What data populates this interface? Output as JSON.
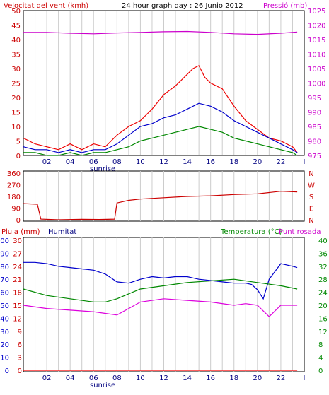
{
  "chart_data": [
    {
      "id": "wind-pressure",
      "type": "line",
      "title": "24 hour graph day : 26 Junio 2012",
      "left_axis_label": "Velocitat del vent (kmh)",
      "right_axis_label": "Pressió (mb)",
      "left_ticks": [
        "0",
        "5",
        "10",
        "15",
        "20",
        "25",
        "30",
        "35",
        "40",
        "45",
        "50"
      ],
      "right_ticks": [
        "975",
        "980",
        "985",
        "990",
        "995",
        "1000",
        "1005",
        "1010",
        "1015",
        "1020",
        "1025"
      ],
      "ylim_left": [
        0,
        50
      ],
      "ylim_right": [
        975,
        1025
      ],
      "x_ticks": [
        "02",
        "04",
        "06",
        "08",
        "10",
        "12",
        "14",
        "16",
        "18",
        "20",
        "22",
        "I"
      ],
      "sunrise_label": "sunrise",
      "grid": true,
      "series": [
        {
          "axis": "right",
          "color": "#cc00cc",
          "x": [
            0,
            2,
            4,
            6,
            8,
            10,
            12,
            14,
            16,
            18,
            20,
            22,
            23.4
          ],
          "values": [
            1017.5,
            1017.5,
            1017.2,
            1017.0,
            1017.3,
            1017.5,
            1017.7,
            1017.8,
            1017.5,
            1017.0,
            1016.8,
            1017.2,
            1017.6
          ]
        },
        {
          "axis": "left",
          "color": "#ee0000",
          "x": [
            0,
            1,
            2,
            3,
            4,
            5,
            6,
            7,
            8,
            9,
            10,
            11,
            12,
            13,
            14,
            14.5,
            15,
            15.5,
            16,
            17,
            18,
            19,
            20,
            21,
            22,
            23,
            23.4
          ],
          "values": [
            6,
            4,
            3,
            2,
            4,
            2,
            4,
            3,
            7,
            10,
            12,
            16,
            21,
            24,
            28,
            30,
            31,
            27,
            25,
            23,
            17,
            12,
            9,
            6,
            5,
            3,
            1
          ]
        },
        {
          "axis": "left",
          "color": "#0000cc",
          "x": [
            0,
            1,
            2,
            3,
            4,
            5,
            6,
            7,
            8,
            9,
            10,
            11,
            12,
            13,
            14,
            15,
            16,
            17,
            18,
            19,
            20,
            21,
            22,
            23,
            23.4
          ],
          "values": [
            3,
            2,
            2,
            1,
            2,
            1,
            2,
            2,
            4,
            7,
            10,
            11,
            13,
            14,
            16,
            18,
            17,
            15,
            12,
            10,
            8,
            6,
            4,
            2,
            1
          ]
        },
        {
          "axis": "left",
          "color": "#008800",
          "x": [
            0,
            1,
            2,
            3,
            4,
            5,
            6,
            7,
            8,
            9,
            10,
            11,
            12,
            13,
            14,
            15,
            16,
            17,
            18,
            19,
            20,
            21,
            22,
            23,
            23.4
          ],
          "values": [
            1,
            1,
            0,
            0,
            1,
            0,
            1,
            1,
            2,
            3,
            5,
            6,
            7,
            8,
            9,
            10,
            9,
            8,
            6,
            5,
            4,
            3,
            2,
            1,
            0
          ]
        }
      ]
    },
    {
      "id": "wind-direction",
      "type": "line",
      "left_ticks": [
        "0",
        "90",
        "180",
        "270",
        "360"
      ],
      "ylim_left": [
        0,
        360
      ],
      "right_labels": [
        "N",
        "W",
        "S",
        "E",
        "N"
      ],
      "grid": true,
      "series": [
        {
          "axis": "left",
          "color": "#cc0000",
          "x": [
            0,
            1.2,
            1.5,
            3,
            5,
            6.5,
            7.8,
            8,
            9,
            10,
            12,
            14,
            16,
            18,
            20,
            21,
            22,
            23.4
          ],
          "values": [
            125,
            120,
            5,
            0,
            3,
            2,
            5,
            130,
            150,
            160,
            170,
            180,
            185,
            195,
            200,
            210,
            220,
            215
          ]
        }
      ]
    },
    {
      "id": "rain-humidity-temp",
      "type": "line",
      "left_axis_label": "Pluja (mm)",
      "humidity_label": "Humitat",
      "right_axis_label": "Temperatura (°C)",
      "dewpoint_label": "Punt rosada",
      "rain_ticks": [
        "0",
        "3",
        "6",
        "9",
        "12",
        "15",
        "18",
        "21",
        "24",
        "27",
        "30"
      ],
      "humidity_ticks": [
        "0",
        "10",
        "20",
        "30",
        "40",
        "50",
        "60",
        "70",
        "80",
        "90",
        "100"
      ],
      "right_ticks": [
        "0",
        "4",
        "8",
        "12",
        "16",
        "20",
        "24",
        "28",
        "32",
        "36",
        "40"
      ],
      "ylim_left": [
        0,
        30
      ],
      "ylim_humidity": [
        0,
        100
      ],
      "ylim_right": [
        0,
        40
      ],
      "x_ticks": [
        "02",
        "04",
        "06",
        "08",
        "10",
        "12",
        "14",
        "16",
        "18",
        "20",
        "22",
        "I"
      ],
      "sunrise_label": "sunrise",
      "grid": true,
      "series": [
        {
          "axis": "humidity",
          "color": "#0000cc",
          "x": [
            0,
            1,
            2,
            3,
            4,
            5,
            6,
            7,
            8,
            9,
            10,
            11,
            12,
            13,
            14,
            15,
            16,
            17,
            18,
            19,
            19.5,
            20,
            20.5,
            21,
            22,
            23,
            23.4
          ],
          "values": [
            83,
            83,
            82,
            80,
            79,
            78,
            77,
            74,
            68,
            67,
            70,
            72,
            71,
            72,
            72,
            70,
            69,
            68,
            67,
            67,
            66,
            62,
            55,
            70,
            82,
            80,
            79
          ]
        },
        {
          "axis": "right",
          "color": "#008800",
          "x": [
            0,
            2,
            4,
            6,
            7,
            8,
            10,
            12,
            14,
            16,
            18,
            20,
            22,
            23.4
          ],
          "values": [
            25,
            23,
            22,
            21,
            21,
            22,
            25,
            26,
            27,
            27.5,
            28,
            27,
            26,
            25
          ]
        },
        {
          "axis": "right",
          "color": "#dd00dd",
          "x": [
            0,
            2,
            4,
            6,
            7,
            8,
            9,
            10,
            12,
            14,
            16,
            18,
            19,
            20,
            21,
            22,
            23,
            23.4
          ],
          "values": [
            20,
            19,
            18.5,
            18,
            17.5,
            17,
            19,
            21,
            22,
            21.5,
            21,
            20,
            20.5,
            20,
            16.5,
            20,
            20,
            20
          ]
        },
        {
          "axis": "left",
          "color": "#ff0000",
          "x": [
            0,
            23.4
          ],
          "values": [
            0,
            0
          ]
        }
      ]
    }
  ]
}
